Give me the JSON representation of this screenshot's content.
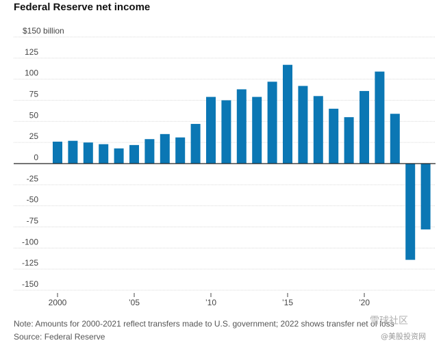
{
  "chart_data": {
    "type": "bar",
    "title": "Federal Reserve net income",
    "ylabel": "$150 billion",
    "ylim": [
      -150,
      150
    ],
    "yticks": [
      150,
      125,
      100,
      75,
      50,
      25,
      0,
      -25,
      -50,
      -75,
      -100,
      -125,
      -150
    ],
    "ytick_labels": [
      "$150 billion",
      "125",
      "100",
      "75",
      "50",
      "25",
      "0",
      "-25",
      "-50",
      "-75",
      "-100",
      "-125",
      "-150"
    ],
    "categories": [
      2000,
      2001,
      2002,
      2003,
      2004,
      2005,
      2006,
      2007,
      2008,
      2009,
      2010,
      2011,
      2012,
      2013,
      2014,
      2015,
      2016,
      2017,
      2018,
      2019,
      2020,
      2021,
      2022,
      2023,
      2024
    ],
    "values": [
      26,
      27,
      25,
      23,
      18,
      22,
      29,
      35,
      31,
      47,
      79,
      75,
      88,
      79,
      97,
      117,
      92,
      80,
      65,
      55,
      86,
      109,
      59,
      -114,
      -78
    ],
    "xtick_labels": [
      {
        "year": 2000,
        "label": "2000"
      },
      {
        "year": 2005,
        "label": "’05"
      },
      {
        "year": 2010,
        "label": "’10"
      },
      {
        "year": 2015,
        "label": "’15"
      },
      {
        "year": 2020,
        "label": "’20"
      }
    ],
    "bar_color": "#0b77b4"
  },
  "note": "Note: Amounts for 2000-2021 reflect transfers made to U.S. government; 2022 shows transfer net of loss",
  "source": "Source: Federal Reserve",
  "watermark": {
    "top": "雪球社区",
    "bottom": "@美股投资网"
  }
}
